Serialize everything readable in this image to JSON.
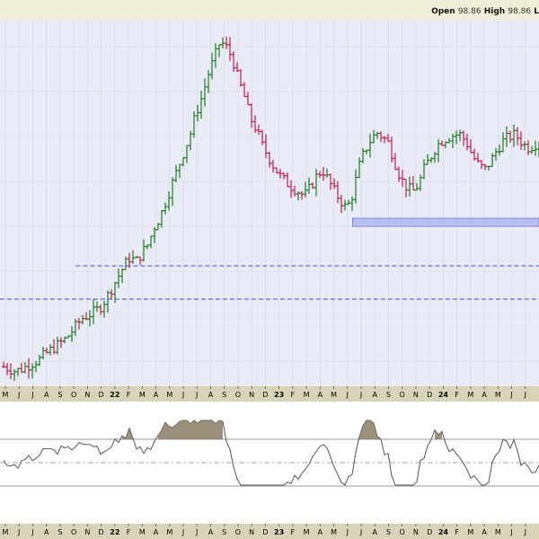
{
  "header": {
    "open_label": "Open",
    "open_value": "98.86",
    "high_label": "High",
    "high_value": "98.86",
    "low_label": "L"
  },
  "chart_data": [
    {
      "type": "ohlc",
      "title": "",
      "x_ticks": [
        "M",
        "J",
        "J",
        "A",
        "S",
        "O",
        "N",
        "D",
        "22",
        "F",
        "M",
        "A",
        "M",
        "J",
        "J",
        "A",
        "S",
        "O",
        "N",
        "D",
        "23",
        "F",
        "M",
        "A",
        "M",
        "J",
        "J",
        "A",
        "S",
        "O",
        "N",
        "D",
        "24",
        "F",
        "M",
        "A",
        "M",
        "J",
        "J"
      ],
      "price_path": [
        8,
        6,
        4,
        6,
        9,
        12,
        15,
        20,
        24,
        28,
        32,
        38,
        45,
        52,
        55,
        58,
        62,
        70,
        80,
        90,
        100,
        108,
        104,
        112,
        120,
        135,
        145,
        160,
        175,
        190,
        205,
        220,
        240,
        255,
        275,
        290,
        305,
        300,
        290,
        270,
        255,
        235,
        225,
        210,
        200,
        190,
        182,
        176,
        172,
        168,
        164,
        172,
        182,
        188,
        178,
        168,
        160,
        152,
        165,
        190,
        205,
        215,
        222,
        218,
        212,
        195,
        180,
        172,
        168,
        175,
        190,
        200,
        210,
        215,
        218,
        220,
        220,
        212,
        200,
        192,
        188,
        196,
        206,
        214,
        218,
        220,
        214,
        208,
        210,
        214
      ],
      "horizontal_lines": [
        {
          "style": "dashed",
          "color": "#3b4fd8",
          "level": "upper"
        },
        {
          "style": "dashed",
          "color": "#3b4fd8",
          "level": "lower"
        }
      ],
      "support_zone": {
        "color": "#b9bff2"
      },
      "up_color": "#1e7b1e",
      "down_color": "#c8194a",
      "grid": true
    },
    {
      "type": "line",
      "title": "",
      "series_color": "#555555",
      "overbought_fill": "#8a7d63",
      "grid": false
    }
  ],
  "colors": {
    "background": "#ffffff",
    "panel_background": "#f2efd9",
    "plot_background": "#e9ecf6",
    "gridline": "#d4d6e4",
    "axis_text": "#000000",
    "axis_band": "#d8d4b8"
  }
}
